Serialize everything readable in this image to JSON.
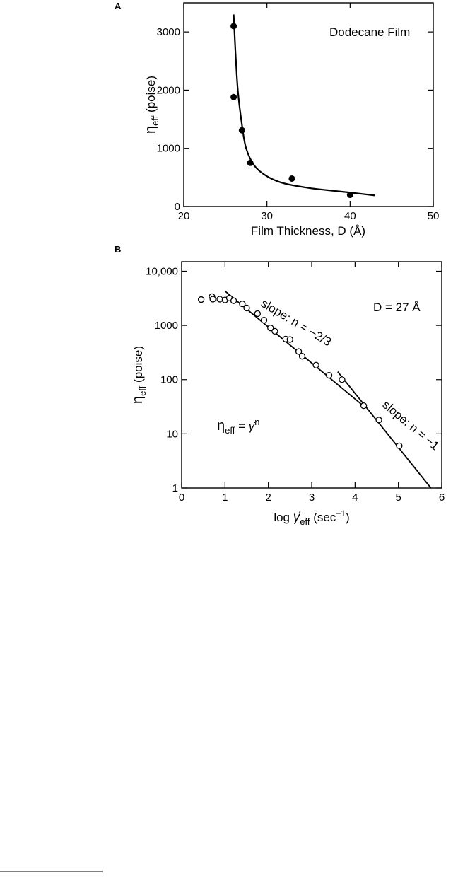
{
  "chart_data": [
    {
      "panel": "A",
      "type": "scatter",
      "xlabel": "Film Thickness, D (Å)",
      "ylabel_main": "η",
      "ylabel_sub": "eff",
      "ylabel_tail": " (poise)",
      "xlim": [
        20,
        50
      ],
      "ylim": [
        0,
        3500
      ],
      "xticks": [
        20,
        30,
        40,
        50
      ],
      "yticks": [
        0,
        1000,
        2000,
        3000
      ],
      "annotation": "Dodecane Film",
      "points": [
        {
          "x": 26,
          "y": 3100
        },
        {
          "x": 26,
          "y": 1880
        },
        {
          "x": 27,
          "y": 1310
        },
        {
          "x": 28,
          "y": 750
        },
        {
          "x": 33,
          "y": 480
        },
        {
          "x": 40,
          "y": 200
        }
      ],
      "fit_curve": [
        [
          26,
          3300
        ],
        [
          26.2,
          2700
        ],
        [
          26.5,
          2000
        ],
        [
          27,
          1400
        ],
        [
          27.5,
          1000
        ],
        [
          28.5,
          700
        ],
        [
          30,
          520
        ],
        [
          32,
          400
        ],
        [
          35,
          320
        ],
        [
          38,
          270
        ],
        [
          40,
          240
        ],
        [
          43,
          190
        ]
      ]
    },
    {
      "panel": "B",
      "type": "scatter",
      "yscale": "log",
      "xlabel_pre": "log ",
      "xlabel_main": "γ̇",
      "xlabel_sub": "eff",
      "xlabel_tail": " (sec",
      "xlabel_sup": "−1",
      "xlabel_end": ")",
      "ylabel_main": "η",
      "ylabel_sub": "eff",
      "ylabel_tail": " (poise)",
      "xlim": [
        0,
        6
      ],
      "ylim": [
        1,
        15000
      ],
      "xticks": [
        0,
        1,
        2,
        3,
        4,
        5,
        6
      ],
      "yticks": [
        1,
        10,
        100,
        1000,
        10000
      ],
      "ytick_labels": [
        "1",
        "10",
        "100",
        "1000",
        "10,000"
      ],
      "annotation_d": "D = 27 Å",
      "formula_main": "η",
      "formula_sub": "eff",
      "formula_eq": " = ",
      "formula_gamma": "γ̇",
      "formula_sup": "n",
      "slope1_label": "slope: n = −2/3",
      "slope2_label": "slope: n = −1",
      "points": [
        {
          "x": 0.45,
          "y": 3000
        },
        {
          "x": 0.7,
          "y": 3400
        },
        {
          "x": 0.72,
          "y": 3050
        },
        {
          "x": 0.88,
          "y": 3050
        },
        {
          "x": 1.0,
          "y": 2950
        },
        {
          "x": 1.1,
          "y": 3200
        },
        {
          "x": 1.2,
          "y": 2850
        },
        {
          "x": 1.4,
          "y": 2500
        },
        {
          "x": 1.5,
          "y": 2100
        },
        {
          "x": 1.75,
          "y": 1650
        },
        {
          "x": 1.9,
          "y": 1250
        },
        {
          "x": 2.05,
          "y": 900
        },
        {
          "x": 2.15,
          "y": 780
        },
        {
          "x": 2.4,
          "y": 560
        },
        {
          "x": 2.5,
          "y": 550
        },
        {
          "x": 2.7,
          "y": 330
        },
        {
          "x": 2.78,
          "y": 270
        },
        {
          "x": 3.1,
          "y": 185
        },
        {
          "x": 3.4,
          "y": 120
        },
        {
          "x": 3.7,
          "y": 100
        },
        {
          "x": 4.2,
          "y": 33
        },
        {
          "x": 4.55,
          "y": 18
        },
        {
          "x": 5.02,
          "y": 6
        }
      ],
      "fit_line_1": [
        [
          1.0,
          4300
        ],
        [
          4.25,
          30
        ]
      ],
      "fit_line_2": [
        [
          3.6,
          140
        ],
        [
          5.75,
          1
        ]
      ]
    }
  ]
}
